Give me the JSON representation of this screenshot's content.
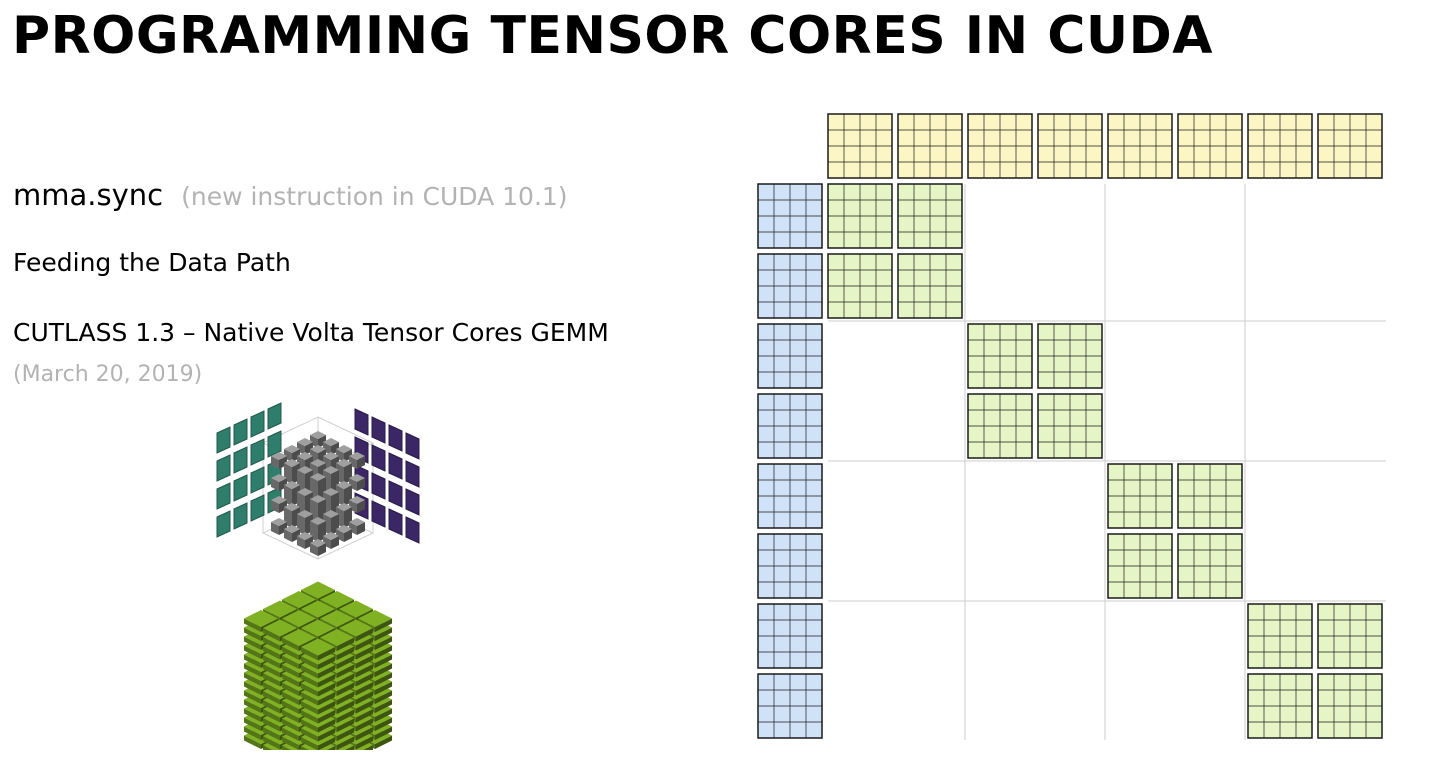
{
  "slide": {
    "title": "PROGRAMMING TENSOR CORES IN CUDA",
    "mma_label": "mma.sync",
    "mma_note": "(new instruction in CUDA 10.1)",
    "feeding": "Feeding the Data Path",
    "cutlass": "CUTLASS 1.3 – Native Volta Tensor Cores GEMM",
    "date": "(March 20, 2019)"
  },
  "colors": {
    "a_tile": "#cfe2f7",
    "b_tile": "#fbf6c4",
    "c_tile": "#e6f5c6",
    "tile_line": "#1a1a1a",
    "divider": "#cccccc",
    "cube_teal": "#2f7d6b",
    "cube_purple": "#3b2766",
    "cube_gray": "#8a8a8a",
    "cube_green": "#6f9a1e"
  },
  "diagram": {
    "b_tiles": 8,
    "a_tiles": 8,
    "warp_block": 2
  }
}
